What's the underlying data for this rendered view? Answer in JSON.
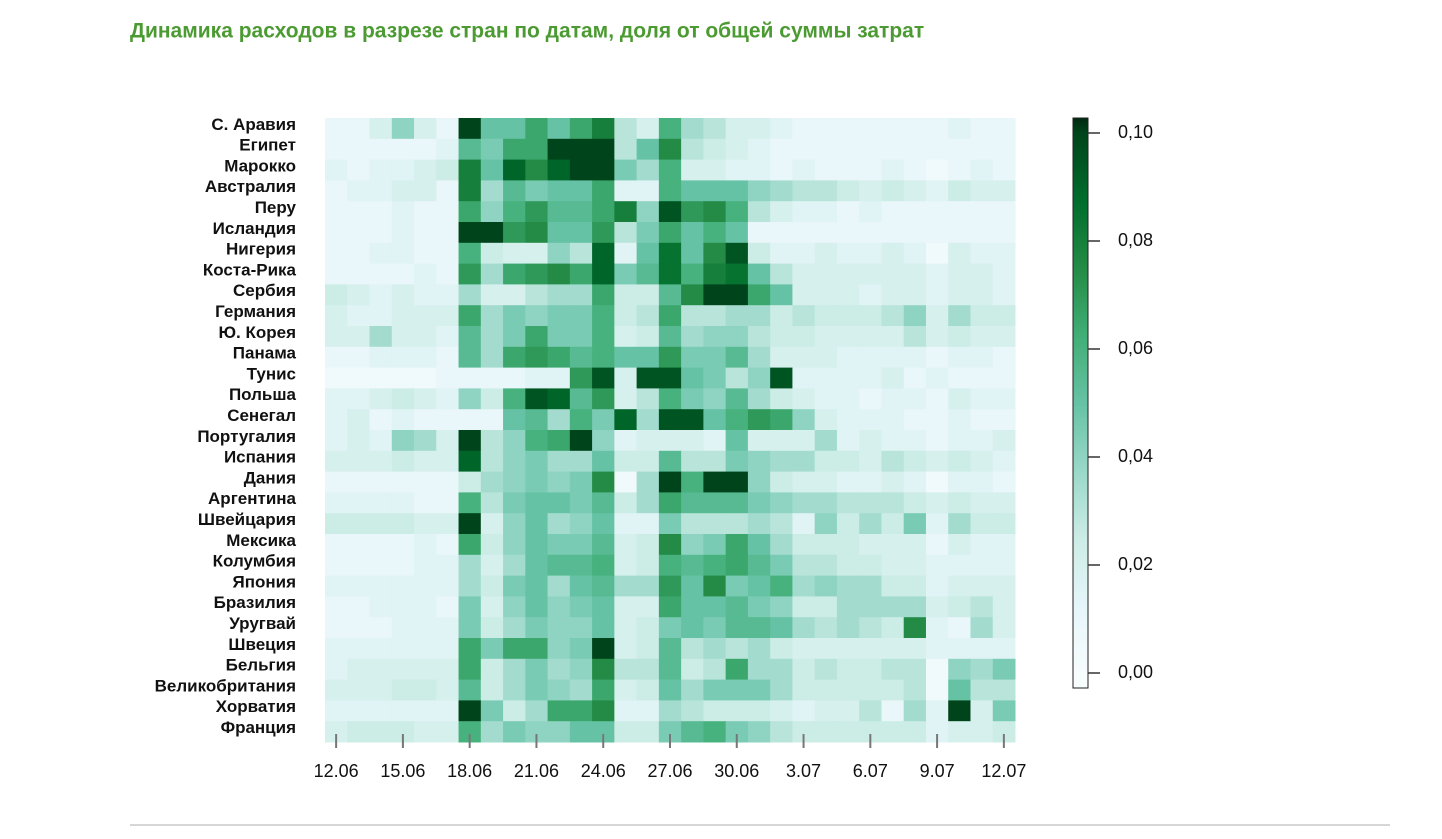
{
  "chart_data": {
    "type": "heatmap",
    "title": "Динамика расходов в разрезе стран по датам, доля от общей суммы затрат",
    "categories": [
      "С. Аравия",
      "Египет",
      "Марокко",
      "Австралия",
      "Перу",
      "Исландия",
      "Нигерия",
      "Коста-Рика",
      "Сербия",
      "Германия",
      "Ю. Корея",
      "Панама",
      "Тунис",
      "Польша",
      "Сенегал",
      "Португалия",
      "Испания",
      "Дания",
      "Аргентина",
      "Швейцария",
      "Мексика",
      "Колумбия",
      "Япония",
      "Бразилия",
      "Уругвай",
      "Швеция",
      "Бельгия",
      "Великобритания",
      "Хорватия",
      "Франция"
    ],
    "x": [
      "12.06",
      null,
      null,
      "15.06",
      null,
      null,
      "18.06",
      null,
      null,
      "21.06",
      null,
      null,
      "24.06",
      null,
      null,
      "27.06",
      null,
      null,
      "30.06",
      null,
      null,
      "3.07",
      null,
      null,
      "6.07",
      null,
      null,
      "9.07",
      null,
      null,
      "12.07"
    ],
    "z": [
      [
        0.01,
        0.01,
        0.02,
        0.04,
        0.02,
        0.01,
        0.1,
        0.05,
        0.05,
        0.065,
        0.05,
        0.065,
        0.08,
        0.03,
        0.02,
        0.06,
        0.035,
        0.03,
        0.02,
        0.02,
        0.015,
        0.01,
        0.01,
        0.01,
        0.01,
        0.01,
        0.01,
        0.01,
        0.015,
        0.01,
        0.01
      ],
      [
        0.01,
        0.01,
        0.01,
        0.01,
        0.01,
        0.015,
        0.055,
        0.045,
        0.065,
        0.065,
        0.1,
        0.1,
        0.1,
        0.03,
        0.05,
        0.075,
        0.03,
        0.025,
        0.02,
        0.015,
        0.01,
        0.01,
        0.01,
        0.01,
        0.01,
        0.01,
        0.01,
        0.01,
        0.01,
        0.01,
        0.01
      ],
      [
        0.015,
        0.01,
        0.015,
        0.015,
        0.02,
        0.025,
        0.08,
        0.05,
        0.09,
        0.075,
        0.09,
        0.1,
        0.1,
        0.045,
        0.035,
        0.06,
        0.02,
        0.02,
        0.015,
        0.015,
        0.01,
        0.015,
        0.01,
        0.01,
        0.01,
        0.015,
        0.01,
        0.005,
        0.01,
        0.015,
        0.01
      ],
      [
        0.01,
        0.015,
        0.015,
        0.02,
        0.02,
        0.01,
        0.08,
        0.035,
        0.055,
        0.045,
        0.05,
        0.05,
        0.065,
        0.015,
        0.015,
        0.06,
        0.05,
        0.05,
        0.05,
        0.04,
        0.035,
        0.03,
        0.03,
        0.025,
        0.02,
        0.025,
        0.02,
        0.015,
        0.025,
        0.02,
        0.02
      ],
      [
        0.01,
        0.01,
        0.01,
        0.015,
        0.01,
        0.01,
        0.065,
        0.04,
        0.06,
        0.07,
        0.055,
        0.055,
        0.065,
        0.08,
        0.04,
        0.095,
        0.07,
        0.075,
        0.06,
        0.03,
        0.02,
        0.015,
        0.015,
        0.01,
        0.015,
        0.01,
        0.01,
        0.01,
        0.01,
        0.01,
        0.01
      ],
      [
        0.01,
        0.01,
        0.01,
        0.015,
        0.01,
        0.01,
        0.1,
        0.1,
        0.07,
        0.075,
        0.05,
        0.05,
        0.07,
        0.03,
        0.045,
        0.065,
        0.05,
        0.06,
        0.05,
        0.01,
        0.01,
        0.01,
        0.01,
        0.01,
        0.01,
        0.01,
        0.01,
        0.01,
        0.01,
        0.01,
        0.01
      ],
      [
        0.01,
        0.01,
        0.015,
        0.015,
        0.01,
        0.01,
        0.06,
        0.025,
        0.02,
        0.02,
        0.04,
        0.03,
        0.09,
        0.015,
        0.05,
        0.085,
        0.05,
        0.075,
        0.095,
        0.025,
        0.015,
        0.015,
        0.02,
        0.015,
        0.015,
        0.02,
        0.015,
        0.005,
        0.02,
        0.015,
        0.015
      ],
      [
        0.01,
        0.01,
        0.01,
        0.01,
        0.015,
        0.01,
        0.07,
        0.035,
        0.065,
        0.07,
        0.075,
        0.065,
        0.09,
        0.045,
        0.055,
        0.085,
        0.06,
        0.08,
        0.085,
        0.05,
        0.03,
        0.02,
        0.02,
        0.02,
        0.02,
        0.02,
        0.02,
        0.015,
        0.02,
        0.02,
        0.015
      ],
      [
        0.025,
        0.02,
        0.015,
        0.02,
        0.015,
        0.015,
        0.035,
        0.02,
        0.02,
        0.03,
        0.035,
        0.035,
        0.065,
        0.025,
        0.025,
        0.055,
        0.075,
        0.1,
        0.1,
        0.065,
        0.05,
        0.02,
        0.02,
        0.02,
        0.015,
        0.02,
        0.02,
        0.015,
        0.02,
        0.02,
        0.015
      ],
      [
        0.02,
        0.015,
        0.015,
        0.02,
        0.02,
        0.02,
        0.065,
        0.035,
        0.045,
        0.04,
        0.045,
        0.045,
        0.06,
        0.025,
        0.03,
        0.065,
        0.03,
        0.03,
        0.035,
        0.035,
        0.025,
        0.03,
        0.025,
        0.025,
        0.025,
        0.03,
        0.04,
        0.02,
        0.035,
        0.025,
        0.025
      ],
      [
        0.02,
        0.02,
        0.035,
        0.02,
        0.02,
        0.015,
        0.055,
        0.035,
        0.045,
        0.065,
        0.045,
        0.045,
        0.06,
        0.02,
        0.025,
        0.055,
        0.035,
        0.04,
        0.04,
        0.03,
        0.025,
        0.025,
        0.02,
        0.02,
        0.02,
        0.02,
        0.03,
        0.02,
        0.025,
        0.02,
        0.02
      ],
      [
        0.01,
        0.01,
        0.015,
        0.015,
        0.015,
        0.01,
        0.055,
        0.035,
        0.065,
        0.07,
        0.065,
        0.055,
        0.06,
        0.05,
        0.05,
        0.07,
        0.045,
        0.045,
        0.055,
        0.035,
        0.02,
        0.02,
        0.02,
        0.015,
        0.015,
        0.015,
        0.015,
        0.01,
        0.015,
        0.015,
        0.01
      ],
      [
        0.005,
        0.005,
        0.005,
        0.005,
        0.005,
        0.01,
        0.01,
        0.01,
        0.01,
        0.015,
        0.015,
        0.07,
        0.095,
        0.02,
        0.095,
        0.095,
        0.05,
        0.045,
        0.03,
        0.04,
        0.095,
        0.015,
        0.015,
        0.015,
        0.015,
        0.02,
        0.01,
        0.015,
        0.01,
        0.01,
        0.01
      ],
      [
        0.015,
        0.015,
        0.02,
        0.025,
        0.02,
        0.015,
        0.04,
        0.025,
        0.06,
        0.095,
        0.09,
        0.055,
        0.07,
        0.02,
        0.03,
        0.06,
        0.045,
        0.04,
        0.055,
        0.035,
        0.025,
        0.02,
        0.015,
        0.015,
        0.01,
        0.015,
        0.015,
        0.01,
        0.02,
        0.015,
        0.015
      ],
      [
        0.015,
        0.02,
        0.01,
        0.015,
        0.01,
        0.01,
        0.01,
        0.01,
        0.05,
        0.055,
        0.035,
        0.06,
        0.045,
        0.09,
        0.035,
        0.095,
        0.095,
        0.05,
        0.06,
        0.07,
        0.065,
        0.04,
        0.02,
        0.015,
        0.015,
        0.015,
        0.01,
        0.01,
        0.015,
        0.01,
        0.01
      ],
      [
        0.015,
        0.02,
        0.015,
        0.04,
        0.035,
        0.02,
        0.1,
        0.03,
        0.04,
        0.06,
        0.065,
        0.1,
        0.04,
        0.015,
        0.02,
        0.02,
        0.02,
        0.015,
        0.05,
        0.02,
        0.02,
        0.02,
        0.035,
        0.015,
        0.02,
        0.015,
        0.015,
        0.01,
        0.015,
        0.015,
        0.02
      ],
      [
        0.02,
        0.02,
        0.02,
        0.025,
        0.02,
        0.02,
        0.09,
        0.03,
        0.04,
        0.045,
        0.035,
        0.035,
        0.05,
        0.025,
        0.025,
        0.055,
        0.03,
        0.03,
        0.045,
        0.04,
        0.035,
        0.035,
        0.025,
        0.025,
        0.02,
        0.03,
        0.025,
        0.02,
        0.025,
        0.02,
        0.015
      ],
      [
        0.01,
        0.01,
        0.01,
        0.01,
        0.01,
        0.01,
        0.025,
        0.035,
        0.04,
        0.045,
        0.04,
        0.045,
        0.075,
        0.005,
        0.035,
        0.1,
        0.06,
        0.1,
        0.1,
        0.04,
        0.025,
        0.02,
        0.02,
        0.015,
        0.015,
        0.02,
        0.015,
        0.005,
        0.015,
        0.015,
        0.01
      ],
      [
        0.015,
        0.015,
        0.015,
        0.015,
        0.01,
        0.01,
        0.06,
        0.03,
        0.045,
        0.05,
        0.05,
        0.045,
        0.055,
        0.025,
        0.035,
        0.065,
        0.055,
        0.055,
        0.055,
        0.045,
        0.04,
        0.035,
        0.035,
        0.03,
        0.03,
        0.03,
        0.025,
        0.02,
        0.025,
        0.02,
        0.02
      ],
      [
        0.025,
        0.025,
        0.025,
        0.025,
        0.02,
        0.02,
        0.1,
        0.02,
        0.04,
        0.05,
        0.035,
        0.04,
        0.05,
        0.015,
        0.015,
        0.045,
        0.03,
        0.03,
        0.03,
        0.035,
        0.03,
        0.015,
        0.04,
        0.025,
        0.035,
        0.025,
        0.045,
        0.015,
        0.035,
        0.025,
        0.025
      ],
      [
        0.01,
        0.01,
        0.01,
        0.01,
        0.015,
        0.01,
        0.065,
        0.025,
        0.04,
        0.05,
        0.045,
        0.045,
        0.055,
        0.02,
        0.025,
        0.075,
        0.04,
        0.045,
        0.065,
        0.05,
        0.035,
        0.025,
        0.025,
        0.025,
        0.02,
        0.02,
        0.02,
        0.01,
        0.02,
        0.015,
        0.015
      ],
      [
        0.01,
        0.01,
        0.01,
        0.01,
        0.015,
        0.015,
        0.035,
        0.02,
        0.035,
        0.05,
        0.055,
        0.055,
        0.06,
        0.02,
        0.025,
        0.06,
        0.055,
        0.06,
        0.065,
        0.055,
        0.045,
        0.03,
        0.03,
        0.025,
        0.025,
        0.02,
        0.02,
        0.015,
        0.015,
        0.015,
        0.015
      ],
      [
        0.015,
        0.015,
        0.015,
        0.015,
        0.015,
        0.015,
        0.035,
        0.025,
        0.045,
        0.05,
        0.035,
        0.05,
        0.055,
        0.035,
        0.035,
        0.07,
        0.05,
        0.075,
        0.045,
        0.05,
        0.06,
        0.035,
        0.04,
        0.035,
        0.035,
        0.025,
        0.025,
        0.015,
        0.02,
        0.02,
        0.02
      ],
      [
        0.01,
        0.01,
        0.015,
        0.015,
        0.015,
        0.01,
        0.045,
        0.02,
        0.04,
        0.05,
        0.04,
        0.045,
        0.05,
        0.02,
        0.02,
        0.065,
        0.05,
        0.05,
        0.055,
        0.045,
        0.04,
        0.025,
        0.025,
        0.035,
        0.035,
        0.035,
        0.035,
        0.02,
        0.025,
        0.03,
        0.02
      ],
      [
        0.01,
        0.01,
        0.01,
        0.015,
        0.015,
        0.015,
        0.045,
        0.025,
        0.035,
        0.045,
        0.04,
        0.04,
        0.05,
        0.02,
        0.025,
        0.045,
        0.05,
        0.045,
        0.055,
        0.055,
        0.05,
        0.035,
        0.03,
        0.035,
        0.03,
        0.025,
        0.075,
        0.015,
        0.01,
        0.035,
        0.02
      ],
      [
        0.015,
        0.015,
        0.015,
        0.015,
        0.015,
        0.015,
        0.065,
        0.045,
        0.065,
        0.065,
        0.04,
        0.045,
        0.1,
        0.02,
        0.025,
        0.055,
        0.03,
        0.035,
        0.03,
        0.035,
        0.025,
        0.02,
        0.02,
        0.02,
        0.02,
        0.02,
        0.02,
        0.015,
        0.015,
        0.015,
        0.015
      ],
      [
        0.015,
        0.02,
        0.02,
        0.02,
        0.02,
        0.02,
        0.065,
        0.025,
        0.035,
        0.045,
        0.035,
        0.04,
        0.075,
        0.03,
        0.03,
        0.055,
        0.025,
        0.03,
        0.065,
        0.035,
        0.035,
        0.025,
        0.03,
        0.025,
        0.025,
        0.03,
        0.03,
        0.005,
        0.04,
        0.035,
        0.045
      ],
      [
        0.02,
        0.02,
        0.02,
        0.025,
        0.025,
        0.02,
        0.055,
        0.025,
        0.035,
        0.045,
        0.04,
        0.035,
        0.065,
        0.02,
        0.025,
        0.05,
        0.035,
        0.045,
        0.045,
        0.045,
        0.035,
        0.025,
        0.025,
        0.025,
        0.025,
        0.025,
        0.03,
        0.005,
        0.05,
        0.03,
        0.03
      ],
      [
        0.015,
        0.015,
        0.015,
        0.015,
        0.015,
        0.015,
        0.1,
        0.045,
        0.025,
        0.035,
        0.065,
        0.065,
        0.075,
        0.015,
        0.015,
        0.035,
        0.03,
        0.025,
        0.025,
        0.025,
        0.02,
        0.015,
        0.02,
        0.02,
        0.03,
        0.01,
        0.035,
        0.015,
        0.1,
        0.02,
        0.045
      ],
      [
        0.02,
        0.025,
        0.025,
        0.025,
        0.02,
        0.02,
        0.06,
        0.035,
        0.045,
        0.04,
        0.04,
        0.05,
        0.05,
        0.025,
        0.025,
        0.045,
        0.055,
        0.06,
        0.045,
        0.04,
        0.03,
        0.025,
        0.025,
        0.025,
        0.025,
        0.025,
        0.025,
        0.015,
        0.02,
        0.02,
        0.025
      ]
    ],
    "zlim": [
      0,
      0.1
    ],
    "zticks": [
      {
        "value": 0,
        "label": "0,00"
      },
      {
        "value": 0.02,
        "label": "0,02"
      },
      {
        "value": 0.04,
        "label": "0,04"
      },
      {
        "value": 0.06,
        "label": "0,06"
      },
      {
        "value": 0.08,
        "label": "0,08"
      },
      {
        "value": 0.1,
        "label": "0,10"
      }
    ],
    "colorscale": [
      "#f7fcfd",
      "#e5f5f9",
      "#ccece6",
      "#99d8c9",
      "#66c2a4",
      "#41ae76",
      "#238b45",
      "#006d2c",
      "#00441b",
      "#002a10"
    ]
  }
}
